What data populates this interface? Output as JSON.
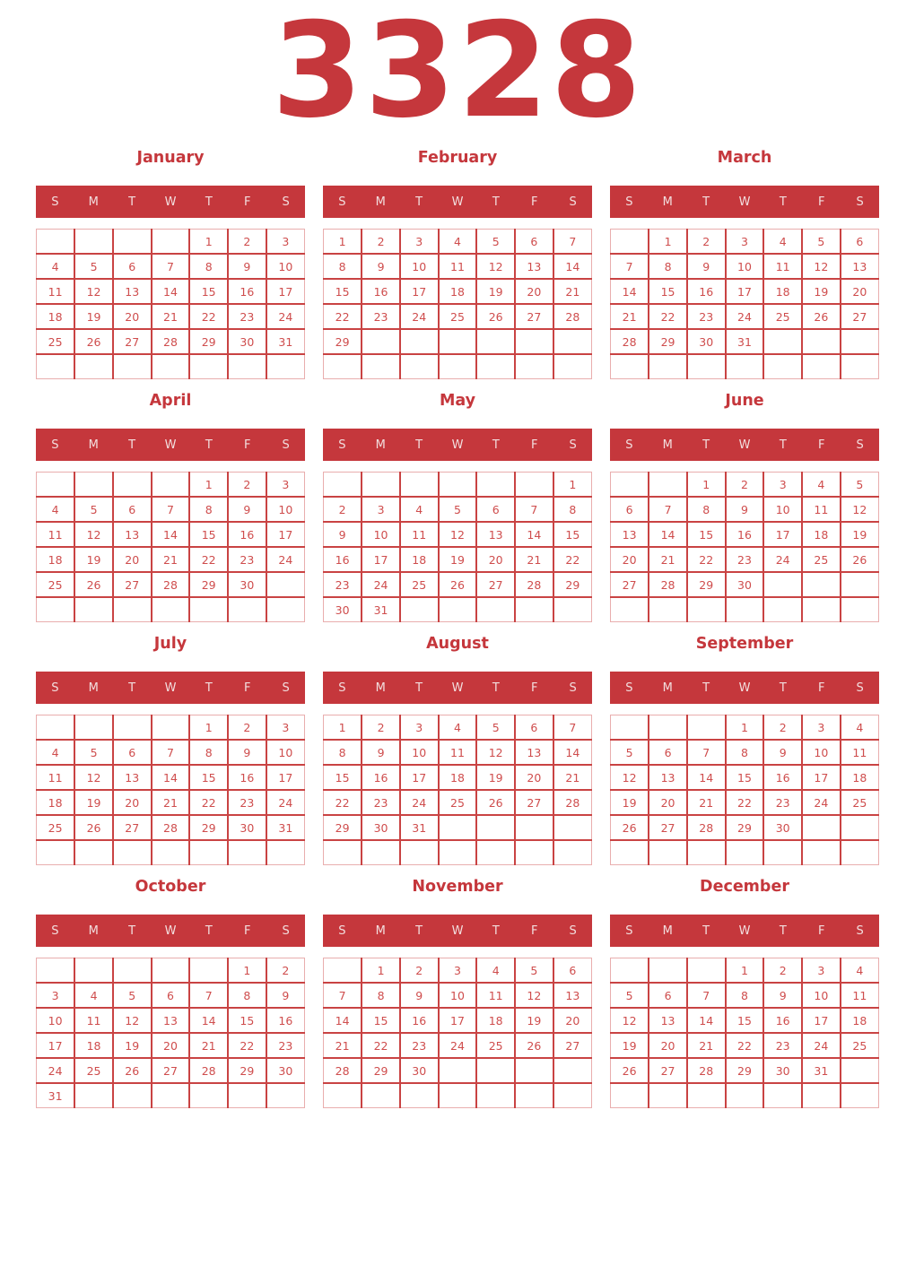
{
  "year": "3328",
  "day_headers": [
    "S",
    "M",
    "T",
    "W",
    "T",
    "F",
    "S"
  ],
  "colors": {
    "accent": "#c5373c",
    "grid_border": "#c94343",
    "grid_outer_border": "#e9aeae",
    "day_number": "#cf4d4d",
    "weekday_text": "#f2dede"
  },
  "months": [
    {
      "name": "January",
      "weeks": [
        [
          "",
          "",
          "",
          "",
          "1",
          "2",
          "3"
        ],
        [
          "4",
          "5",
          "6",
          "7",
          "8",
          "9",
          "10"
        ],
        [
          "11",
          "12",
          "13",
          "14",
          "15",
          "16",
          "17"
        ],
        [
          "18",
          "19",
          "20",
          "21",
          "22",
          "23",
          "24"
        ],
        [
          "25",
          "26",
          "27",
          "28",
          "29",
          "30",
          "31"
        ],
        [
          "",
          "",
          "",
          "",
          "",
          "",
          ""
        ]
      ]
    },
    {
      "name": "February",
      "weeks": [
        [
          "1",
          "2",
          "3",
          "4",
          "5",
          "6",
          "7"
        ],
        [
          "8",
          "9",
          "10",
          "11",
          "12",
          "13",
          "14"
        ],
        [
          "15",
          "16",
          "17",
          "18",
          "19",
          "20",
          "21"
        ],
        [
          "22",
          "23",
          "24",
          "25",
          "26",
          "27",
          "28"
        ],
        [
          "29",
          "",
          "",
          "",
          "",
          "",
          ""
        ],
        [
          "",
          "",
          "",
          "",
          "",
          "",
          ""
        ]
      ]
    },
    {
      "name": "March",
      "weeks": [
        [
          "",
          "1",
          "2",
          "3",
          "4",
          "5",
          "6"
        ],
        [
          "7",
          "8",
          "9",
          "10",
          "11",
          "12",
          "13"
        ],
        [
          "14",
          "15",
          "16",
          "17",
          "18",
          "19",
          "20"
        ],
        [
          "21",
          "22",
          "23",
          "24",
          "25",
          "26",
          "27"
        ],
        [
          "28",
          "29",
          "30",
          "31",
          "",
          "",
          ""
        ],
        [
          "",
          "",
          "",
          "",
          "",
          "",
          ""
        ]
      ]
    },
    {
      "name": "April",
      "weeks": [
        [
          "",
          "",
          "",
          "",
          "1",
          "2",
          "3"
        ],
        [
          "4",
          "5",
          "6",
          "7",
          "8",
          "9",
          "10"
        ],
        [
          "11",
          "12",
          "13",
          "14",
          "15",
          "16",
          "17"
        ],
        [
          "18",
          "19",
          "20",
          "21",
          "22",
          "23",
          "24"
        ],
        [
          "25",
          "26",
          "27",
          "28",
          "29",
          "30",
          ""
        ],
        [
          "",
          "",
          "",
          "",
          "",
          "",
          ""
        ]
      ]
    },
    {
      "name": "May",
      "weeks": [
        [
          "",
          "",
          "",
          "",
          "",
          "",
          "1"
        ],
        [
          "2",
          "3",
          "4",
          "5",
          "6",
          "7",
          "8"
        ],
        [
          "9",
          "10",
          "11",
          "12",
          "13",
          "14",
          "15"
        ],
        [
          "16",
          "17",
          "18",
          "19",
          "20",
          "21",
          "22"
        ],
        [
          "23",
          "24",
          "25",
          "26",
          "27",
          "28",
          "29"
        ],
        [
          "30",
          "31",
          "",
          "",
          "",
          "",
          ""
        ]
      ]
    },
    {
      "name": "June",
      "weeks": [
        [
          "",
          "",
          "1",
          "2",
          "3",
          "4",
          "5"
        ],
        [
          "6",
          "7",
          "8",
          "9",
          "10",
          "11",
          "12"
        ],
        [
          "13",
          "14",
          "15",
          "16",
          "17",
          "18",
          "19"
        ],
        [
          "20",
          "21",
          "22",
          "23",
          "24",
          "25",
          "26"
        ],
        [
          "27",
          "28",
          "29",
          "30",
          "",
          "",
          ""
        ],
        [
          "",
          "",
          "",
          "",
          "",
          "",
          ""
        ]
      ]
    },
    {
      "name": "July",
      "weeks": [
        [
          "",
          "",
          "",
          "",
          "1",
          "2",
          "3"
        ],
        [
          "4",
          "5",
          "6",
          "7",
          "8",
          "9",
          "10"
        ],
        [
          "11",
          "12",
          "13",
          "14",
          "15",
          "16",
          "17"
        ],
        [
          "18",
          "19",
          "20",
          "21",
          "22",
          "23",
          "24"
        ],
        [
          "25",
          "26",
          "27",
          "28",
          "29",
          "30",
          "31"
        ],
        [
          "",
          "",
          "",
          "",
          "",
          "",
          ""
        ]
      ]
    },
    {
      "name": "August",
      "weeks": [
        [
          "1",
          "2",
          "3",
          "4",
          "5",
          "6",
          "7"
        ],
        [
          "8",
          "9",
          "10",
          "11",
          "12",
          "13",
          "14"
        ],
        [
          "15",
          "16",
          "17",
          "18",
          "19",
          "20",
          "21"
        ],
        [
          "22",
          "23",
          "24",
          "25",
          "26",
          "27",
          "28"
        ],
        [
          "29",
          "30",
          "31",
          "",
          "",
          "",
          ""
        ],
        [
          "",
          "",
          "",
          "",
          "",
          "",
          ""
        ]
      ]
    },
    {
      "name": "September",
      "weeks": [
        [
          "",
          "",
          "",
          "1",
          "2",
          "3",
          "4"
        ],
        [
          "5",
          "6",
          "7",
          "8",
          "9",
          "10",
          "11"
        ],
        [
          "12",
          "13",
          "14",
          "15",
          "16",
          "17",
          "18"
        ],
        [
          "19",
          "20",
          "21",
          "22",
          "23",
          "24",
          "25"
        ],
        [
          "26",
          "27",
          "28",
          "29",
          "30",
          "",
          ""
        ],
        [
          "",
          "",
          "",
          "",
          "",
          "",
          ""
        ]
      ]
    },
    {
      "name": "October",
      "weeks": [
        [
          "",
          "",
          "",
          "",
          "",
          "1",
          "2"
        ],
        [
          "3",
          "4",
          "5",
          "6",
          "7",
          "8",
          "9"
        ],
        [
          "10",
          "11",
          "12",
          "13",
          "14",
          "15",
          "16"
        ],
        [
          "17",
          "18",
          "19",
          "20",
          "21",
          "22",
          "23"
        ],
        [
          "24",
          "25",
          "26",
          "27",
          "28",
          "29",
          "30"
        ],
        [
          "31",
          "",
          "",
          "",
          "",
          "",
          ""
        ]
      ]
    },
    {
      "name": "November",
      "weeks": [
        [
          "",
          "1",
          "2",
          "3",
          "4",
          "5",
          "6"
        ],
        [
          "7",
          "8",
          "9",
          "10",
          "11",
          "12",
          "13"
        ],
        [
          "14",
          "15",
          "16",
          "17",
          "18",
          "19",
          "20"
        ],
        [
          "21",
          "22",
          "23",
          "24",
          "25",
          "26",
          "27"
        ],
        [
          "28",
          "29",
          "30",
          "",
          "",
          "",
          ""
        ],
        [
          "",
          "",
          "",
          "",
          "",
          "",
          ""
        ]
      ]
    },
    {
      "name": "December",
      "weeks": [
        [
          "",
          "",
          "",
          "1",
          "2",
          "3",
          "4"
        ],
        [
          "5",
          "6",
          "7",
          "8",
          "9",
          "10",
          "11"
        ],
        [
          "12",
          "13",
          "14",
          "15",
          "16",
          "17",
          "18"
        ],
        [
          "19",
          "20",
          "21",
          "22",
          "23",
          "24",
          "25"
        ],
        [
          "26",
          "27",
          "28",
          "29",
          "30",
          "31",
          ""
        ],
        [
          "",
          "",
          "",
          "",
          "",
          "",
          ""
        ]
      ]
    }
  ]
}
